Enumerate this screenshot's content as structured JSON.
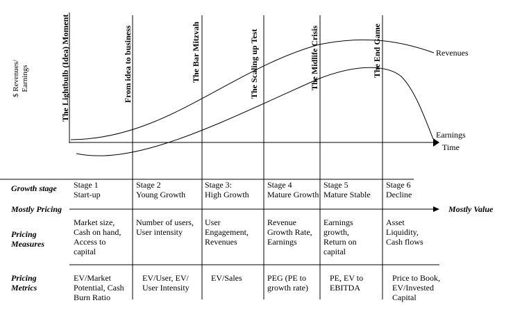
{
  "y_axis_label": "$ Revenues/\nEarnings",
  "x_axis_label": "Time",
  "curves": {
    "revenues": "Revenues",
    "earnings": "Earnings"
  },
  "phases": [
    "The Lightbulb (Idea) Moment",
    "From idea to business",
    "The Bar Mitzvah",
    "The Scaling up Test",
    "The Midlife Crisis",
    "The End Game"
  ],
  "rows": {
    "growth_stage": "Growth stage",
    "pricing_arrow_left": "Mostly Pricing",
    "pricing_arrow_right": "Mostly Value",
    "pricing_measures": "Pricing\nMeasures",
    "pricing_metrics": "Pricing\nMetrics"
  },
  "stages": [
    {
      "stage": "Stage 1\nStart-up",
      "measures": "Market size,\nCash on hand,\nAccess to\ncapital",
      "metrics": "EV/Market\nPotential, Cash\nBurn Ratio"
    },
    {
      "stage": "Stage 2\nYoung Growth",
      "measures": "Number of users,\nUser intensity",
      "metrics": "EV/User, EV/\nUser Intensity"
    },
    {
      "stage": "Stage 3:\nHigh Growth",
      "measures": "User\nEngagement,\nRevenues",
      "metrics": "EV/Sales"
    },
    {
      "stage": "Stage 4\nMature Growth",
      "measures": "Revenue\nGrowth Rate,\nEarnings",
      "metrics": "PEG (PE to\ngrowth rate)"
    },
    {
      "stage": "Stage 5\nMature Stable",
      "measures": "Earnings\ngrowth,\nReturn on\ncapital",
      "metrics": "PE, EV to\nEBITDA"
    },
    {
      "stage": "Stage 6\nDecline",
      "measures": "Asset\nLiquidity,\nCash flows",
      "metrics": "Price to Book,\nEV/Invested\nCapital"
    }
  ]
}
